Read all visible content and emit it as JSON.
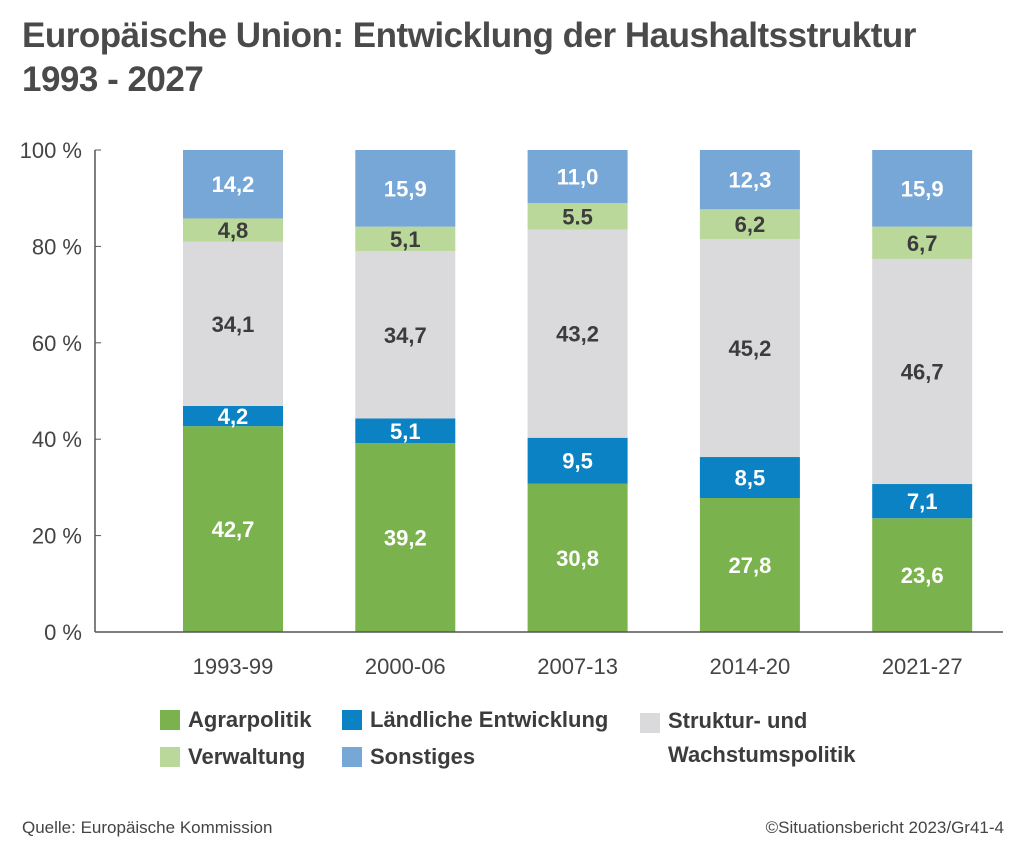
{
  "title_line1": "Europäische Union: Entwicklung der Haushaltsstruktur",
  "title_line2": "1993 - 2027",
  "source": "Quelle: Europäische Kommission",
  "credit": "©Situationsbericht 2023/Gr41-4",
  "chart_data": {
    "type": "bar",
    "stacked": true,
    "categories": [
      "1993-99",
      "2000-06",
      "2007-13",
      "2014-20",
      "2021-27"
    ],
    "ylim": [
      0,
      100
    ],
    "yticks": [
      "0 %",
      "20 %",
      "40 %",
      "60 %",
      "80 %",
      "100 %"
    ],
    "ytick_values": [
      0,
      20,
      40,
      60,
      80,
      100
    ],
    "grid": false,
    "legend_placement": "bottom",
    "series": [
      {
        "name": "Agrarpolitik",
        "color": "#7ab24e",
        "label_color": "#ffffff",
        "values": [
          42.7,
          39.2,
          30.8,
          27.8,
          23.6
        ],
        "labels": [
          "42,7",
          "39,2",
          "30,8",
          "27,8",
          "23,6"
        ]
      },
      {
        "name": "Ländliche Entwicklung",
        "color": "#0a82c3",
        "label_color": "#ffffff",
        "values": [
          4.2,
          5.1,
          9.5,
          8.5,
          7.1
        ],
        "labels": [
          "4,2",
          "5,1",
          "9,5",
          "8,5",
          "7,1"
        ]
      },
      {
        "name": "Struktur- und Wachstumspolitik",
        "color": "#dadadc",
        "label_color": "#3c3c3c",
        "values": [
          34.1,
          34.7,
          43.2,
          45.2,
          46.7
        ],
        "labels": [
          "34,1",
          "34,7",
          "43,2",
          "45,2",
          "46,7"
        ]
      },
      {
        "name": "Verwaltung",
        "color": "#b9d89a",
        "label_color": "#3c3c3c",
        "values": [
          4.8,
          5.1,
          5.5,
          6.2,
          6.7
        ],
        "labels": [
          "4,8",
          "5,1",
          "5.5",
          "6,2",
          "6,7"
        ]
      },
      {
        "name": "Sonstiges",
        "color": "#77a7d6",
        "label_color": "#ffffff",
        "values": [
          14.2,
          15.9,
          11.0,
          12.3,
          15.9
        ],
        "labels": [
          "14,2",
          "15,9",
          "11,0",
          "12,3",
          "15,9"
        ]
      }
    ],
    "legend": {
      "agrar": "Agrarpolitik",
      "laendlich": "Ländliche Entwicklung",
      "struktur_line1": "Struktur- und",
      "struktur_line2": "Wachstumspolitik",
      "verwaltung": "Verwaltung",
      "sonstiges": "Sonstiges"
    }
  }
}
